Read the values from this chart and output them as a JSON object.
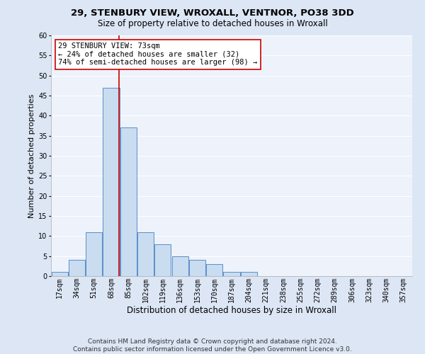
{
  "title_line1": "29, STENBURY VIEW, WROXALL, VENTNOR, PO38 3DD",
  "title_line2": "Size of property relative to detached houses in Wroxall",
  "xlabel": "Distribution of detached houses by size in Wroxall",
  "ylabel": "Number of detached properties",
  "categories": [
    "17sqm",
    "34sqm",
    "51sqm",
    "68sqm",
    "85sqm",
    "102sqm",
    "119sqm",
    "136sqm",
    "153sqm",
    "170sqm",
    "187sqm",
    "204sqm",
    "221sqm",
    "238sqm",
    "255sqm",
    "272sqm",
    "289sqm",
    "306sqm",
    "323sqm",
    "340sqm",
    "357sqm"
  ],
  "values": [
    1,
    4,
    11,
    47,
    37,
    11,
    8,
    5,
    4,
    3,
    1,
    1,
    0,
    0,
    0,
    0,
    0,
    0,
    0,
    0,
    0
  ],
  "bar_color": "#c9dcf0",
  "bar_edge_color": "#5b8fc9",
  "vline_index": 3,
  "vline_color": "#cc0000",
  "ylim": [
    0,
    60
  ],
  "yticks": [
    0,
    5,
    10,
    15,
    20,
    25,
    30,
    35,
    40,
    45,
    50,
    55,
    60
  ],
  "annotation_text": "29 STENBURY VIEW: 73sqm\n← 24% of detached houses are smaller (32)\n74% of semi-detached houses are larger (98) →",
  "annotation_box_color": "#ffffff",
  "annotation_box_edge": "#cc0000",
  "footer_line1": "Contains HM Land Registry data © Crown copyright and database right 2024.",
  "footer_line2": "Contains public sector information licensed under the Open Government Licence v3.0.",
  "bg_color": "#dce6f5",
  "plot_bg_color": "#edf2fb",
  "title1_fontsize": 9.5,
  "title2_fontsize": 8.5,
  "axis_label_fontsize": 8,
  "tick_fontsize": 7,
  "footer_fontsize": 6.5,
  "annotation_fontsize": 7.5
}
